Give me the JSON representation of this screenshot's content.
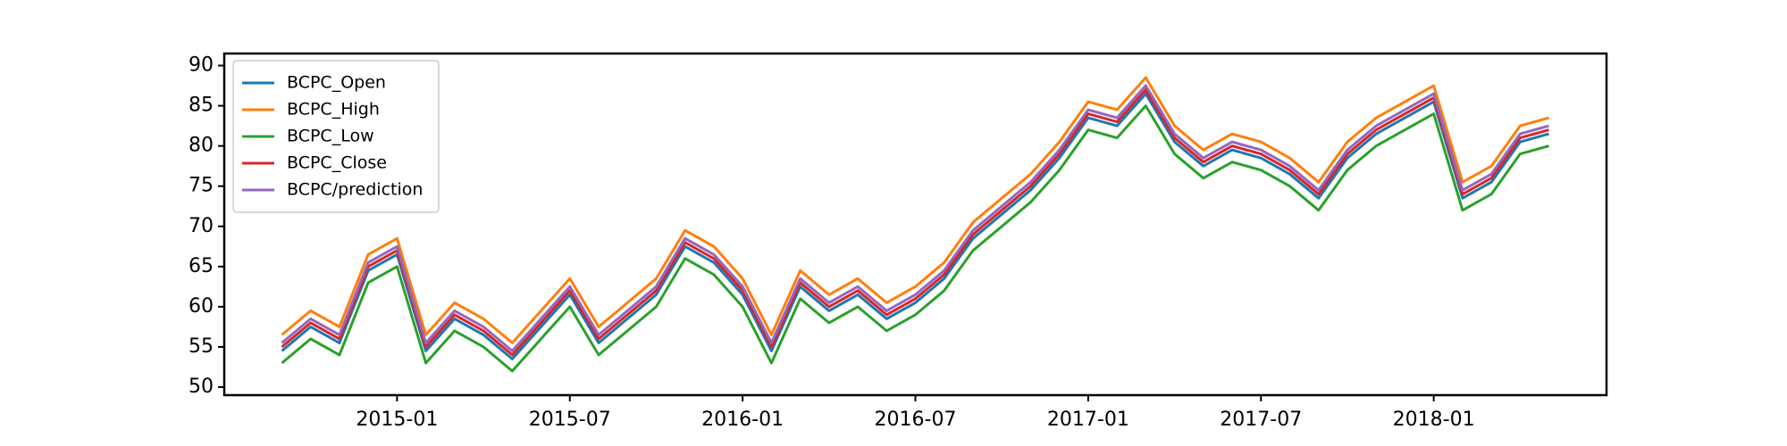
{
  "chart_data": {
    "type": "line",
    "x": [
      "2014-09",
      "2014-10",
      "2014-11",
      "2014-12",
      "2015-01",
      "2015-02",
      "2015-03",
      "2015-04",
      "2015-05",
      "2015-06",
      "2015-07",
      "2015-08",
      "2015-09",
      "2015-10",
      "2015-11",
      "2015-12",
      "2016-01",
      "2016-02",
      "2016-03",
      "2016-04",
      "2016-05",
      "2016-06",
      "2016-07",
      "2016-08",
      "2016-09",
      "2016-10",
      "2016-11",
      "2016-12",
      "2017-01",
      "2017-02",
      "2017-03",
      "2017-04",
      "2017-05",
      "2017-06",
      "2017-07",
      "2017-08",
      "2017-09",
      "2017-10",
      "2017-11",
      "2017-12",
      "2018-01",
      "2018-02",
      "2018-03",
      "2018-04",
      "2018-05"
    ],
    "series": [
      {
        "name": "BCPC_Open",
        "color": "#1f77b4",
        "values": [
          54.5,
          57.5,
          55.5,
          64.5,
          66.5,
          54.5,
          58.5,
          56.5,
          53.5,
          57.5,
          61.5,
          55.5,
          58.5,
          61.5,
          67.5,
          65.5,
          61.5,
          54.5,
          62.5,
          59.5,
          61.5,
          58.5,
          60.5,
          63.5,
          68.5,
          71.5,
          74.5,
          78.5,
          83.5,
          82.5,
          86.5,
          80.5,
          77.5,
          79.5,
          78.5,
          76.5,
          73.5,
          78.5,
          81.5,
          83.5,
          85.5,
          73.5,
          75.5,
          80.5,
          81.5
        ]
      },
      {
        "name": "BCPC_High",
        "color": "#ff7f0e",
        "values": [
          56.5,
          59.5,
          57.5,
          66.5,
          68.5,
          56.5,
          60.5,
          58.5,
          55.5,
          59.5,
          63.5,
          57.5,
          60.5,
          63.5,
          69.5,
          67.5,
          63.5,
          56.5,
          64.5,
          61.5,
          63.5,
          60.5,
          62.5,
          65.5,
          70.5,
          73.5,
          76.5,
          80.5,
          85.5,
          84.5,
          88.5,
          82.5,
          79.5,
          81.5,
          80.5,
          78.5,
          75.5,
          80.5,
          83.5,
          85.5,
          87.5,
          75.5,
          77.5,
          82.5,
          83.5
        ]
      },
      {
        "name": "BCPC_Low",
        "color": "#2ca02c",
        "values": [
          53,
          56,
          54,
          63,
          65,
          53,
          57,
          55,
          52,
          56,
          60,
          54,
          57,
          60,
          66,
          64,
          60,
          53,
          61,
          58,
          60,
          57,
          59,
          62,
          67,
          70,
          73,
          77,
          82,
          81,
          85,
          79,
          76,
          78,
          77,
          75,
          72,
          77,
          80,
          82,
          84,
          72,
          74,
          79,
          80
        ]
      },
      {
        "name": "BCPC_Close",
        "color": "#d62728",
        "values": [
          55,
          58,
          56,
          65,
          67,
          55,
          59,
          57,
          54,
          58,
          62,
          56,
          59,
          62,
          68,
          66,
          62,
          55,
          63,
          60,
          62,
          59,
          61,
          64,
          69,
          72,
          75,
          79,
          84,
          83,
          87,
          81,
          78,
          80,
          79,
          77,
          74,
          79,
          82,
          84,
          86,
          74,
          76,
          81,
          82
        ]
      },
      {
        "name": "BCPC/prediction",
        "color": "#9467bd",
        "values": [
          55.5,
          58.5,
          56.5,
          65.5,
          67.5,
          55.5,
          59.5,
          57.5,
          54.5,
          58.5,
          62.5,
          56.5,
          59.5,
          62.5,
          68.5,
          66.5,
          62.5,
          55.5,
          63.5,
          60.5,
          62.5,
          59.5,
          61.5,
          64.5,
          69.5,
          72.5,
          75.5,
          79.5,
          84.5,
          83.5,
          87.5,
          81.5,
          78.5,
          80.5,
          79.5,
          77.5,
          74.5,
          79.5,
          82.5,
          84.5,
          86.5,
          74.5,
          76.5,
          81.5,
          82.5
        ]
      }
    ],
    "xlim": [
      "2014-07",
      "2018-07"
    ],
    "xticks": [
      "2015-01",
      "2015-07",
      "2016-01",
      "2016-07",
      "2017-01",
      "2017-07",
      "2018-01"
    ],
    "ylim": [
      49,
      91.5
    ],
    "yticks": [
      50,
      55,
      60,
      65,
      70,
      75,
      80,
      85,
      90
    ],
    "legend": "upper left"
  }
}
